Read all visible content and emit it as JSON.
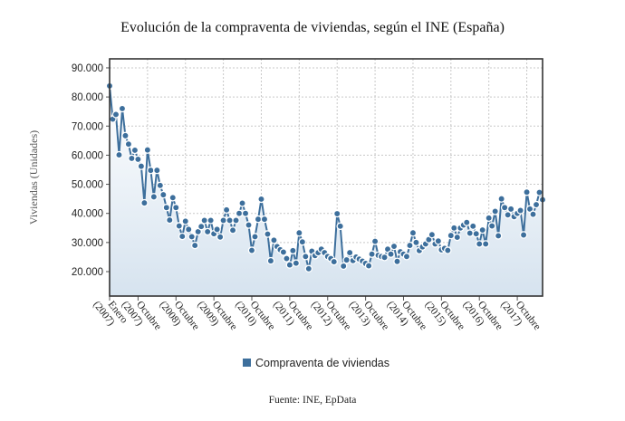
{
  "chart_data": {
    "type": "line",
    "title": "Evolución de la compraventa de viviendas, según el INE (España)",
    "ylabel": "Viviendas (Unidades)",
    "xlabel": "",
    "source": "Fuente: INE, EpData",
    "legend": {
      "position": "bottom-center",
      "entries": [
        "Compraventa de viviendas"
      ]
    },
    "colors": {
      "line": "#3d6f9c",
      "marker": "#3d6f9c",
      "area_top": "#ffffff",
      "area_bottom": "#d6e3ef",
      "grid": "#c8c8c8",
      "frame": "#333333"
    },
    "grid": true,
    "ylim": [
      11600,
      93100
    ],
    "yticks": [
      20000,
      30000,
      40000,
      50000,
      60000,
      70000,
      80000,
      90000
    ],
    "ytick_labels": [
      "20.000",
      "30.000",
      "40.000",
      "50.000",
      "60.000",
      "70.000",
      "80.000",
      "90.000"
    ],
    "xlim": [
      0,
      137
    ],
    "xticks": [
      {
        "index": 0,
        "label": [
          "Enero",
          "(2007)"
        ]
      },
      {
        "index": 9,
        "label": [
          "Octubre",
          "(2007)"
        ]
      },
      {
        "index": 21,
        "label": [
          "Octubre",
          "(2008)"
        ]
      },
      {
        "index": 33,
        "label": [
          "Octubre",
          "(2009)"
        ]
      },
      {
        "index": 45,
        "label": [
          "Octubre",
          "(2010)"
        ]
      },
      {
        "index": 57,
        "label": [
          "Octubre",
          "(2011)"
        ]
      },
      {
        "index": 69,
        "label": [
          "Octubre",
          "(2012)"
        ]
      },
      {
        "index": 81,
        "label": [
          "Octubre",
          "(2013)"
        ]
      },
      {
        "index": 93,
        "label": [
          "Octubre",
          "(2014)"
        ]
      },
      {
        "index": 105,
        "label": [
          "Octubre",
          "(2015)"
        ]
      },
      {
        "index": 117,
        "label": [
          "Octubre",
          "(2016)"
        ]
      },
      {
        "index": 129,
        "label": [
          "Octubre",
          "(2017)"
        ]
      }
    ],
    "series": [
      {
        "name": "Compraventa de viviendas",
        "values": [
          83800,
          72400,
          74000,
          60100,
          76000,
          66700,
          63800,
          58900,
          61700,
          58600,
          56200,
          43600,
          61800,
          54800,
          45700,
          54800,
          49600,
          46400,
          42000,
          37700,
          45400,
          42000,
          35700,
          32100,
          37300,
          34500,
          32000,
          29000,
          33700,
          35500,
          37600,
          33700,
          37600,
          33000,
          34500,
          31900,
          37600,
          41200,
          37600,
          34200,
          37600,
          40000,
          43500,
          40000,
          36000,
          27300,
          32000,
          38000,
          44900,
          38000,
          32900,
          23700,
          30800,
          28600,
          27500,
          26700,
          24500,
          22300,
          27200,
          22900,
          33300,
          30200,
          25200,
          21000,
          27000,
          25500,
          26500,
          27700,
          26500,
          25200,
          24500,
          23400,
          39900,
          35600,
          21900,
          24000,
          26500,
          23800,
          25000,
          24300,
          23600,
          22800,
          22000,
          26000,
          30400,
          25600,
          25200,
          24900,
          27700,
          26000,
          28700,
          23500,
          26800,
          26000,
          25200,
          29000,
          33300,
          30000,
          27200,
          28500,
          29500,
          31000,
          32700,
          29500,
          30500,
          27500,
          28000,
          27300,
          32400,
          35000,
          31800,
          35000,
          36000,
          36900,
          33200,
          35600,
          33000,
          29500,
          34300,
          29500,
          38400,
          35700,
          40700,
          32300,
          45000,
          42000,
          39500,
          41500,
          38900,
          40000,
          41000,
          32600,
          47300,
          41500,
          39700,
          43000,
          47200,
          44700
        ]
      }
    ]
  }
}
